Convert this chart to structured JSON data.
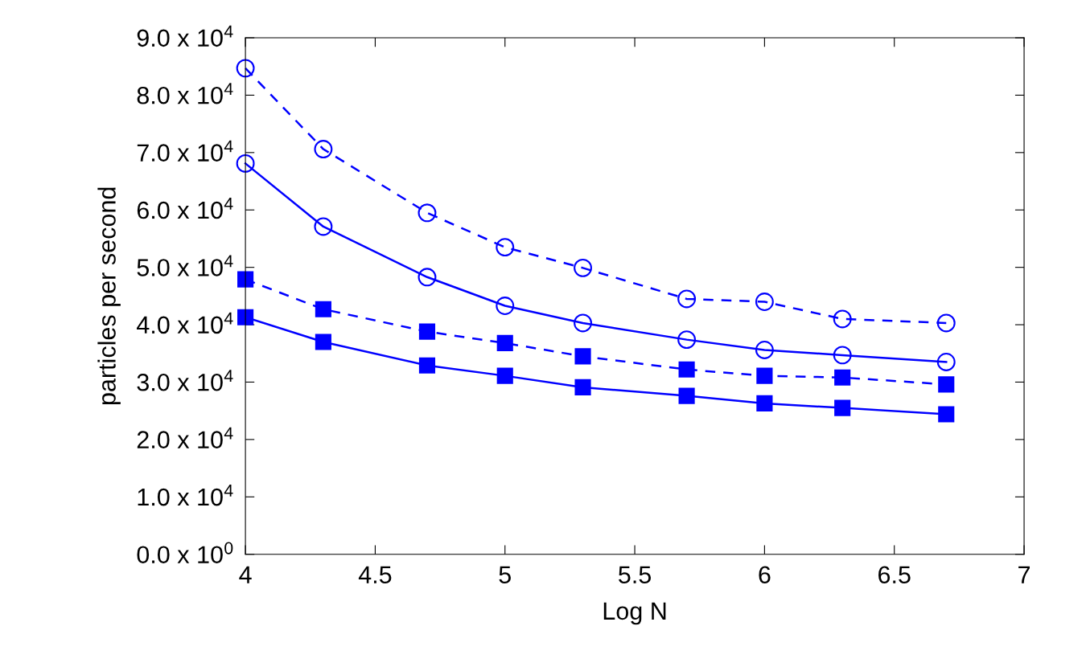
{
  "chart_data": {
    "type": "line",
    "xlabel": "Log N",
    "ylabel": "particles per second",
    "x": [
      4,
      4.3,
      4.7,
      5,
      5.3,
      5.7,
      6,
      6.3,
      6.7
    ],
    "series": [
      {
        "color": "#0000ff",
        "marker": "circle",
        "line_style": "dashed",
        "values": [
          84700,
          70600,
          59500,
          53500,
          49900,
          44500,
          44000,
          41000,
          40300
        ]
      },
      {
        "color": "#0000ff",
        "marker": "circle",
        "line_style": "solid",
        "values": [
          68100,
          57100,
          48300,
          43300,
          40300,
          37400,
          35600,
          34700,
          33500
        ]
      },
      {
        "color": "#0000ff",
        "marker": "square",
        "line_style": "dashed",
        "values": [
          47900,
          42700,
          38800,
          36800,
          34500,
          32200,
          31100,
          30800,
          29600
        ]
      },
      {
        "color": "#0000ff",
        "marker": "square",
        "line_style": "solid",
        "values": [
          41300,
          37000,
          32900,
          31100,
          29100,
          27600,
          26300,
          25500,
          24400
        ]
      }
    ],
    "xlim": [
      4,
      7
    ],
    "xticks": [
      4,
      4.5,
      5,
      5.5,
      6,
      6.5,
      7
    ],
    "ylim": [
      0,
      90000
    ],
    "yticks": [
      {
        "value": 0,
        "label": "0.0 x 10$^{0}$"
      },
      {
        "value": 10000,
        "label": "1.0 x 10$^{4}$"
      },
      {
        "value": 20000,
        "label": "2.0 x 10$^{4}$"
      },
      {
        "value": 30000,
        "label": "3.0 x 10$^{4}$"
      },
      {
        "value": 40000,
        "label": "4.0 x 10$^{4}$"
      },
      {
        "value": 50000,
        "label": "5.0 x 10$^{4}$"
      },
      {
        "value": 60000,
        "label": "6.0 x 10$^{4}$"
      },
      {
        "value": 70000,
        "label": "7.0 x 10$^{4}$"
      },
      {
        "value": 80000,
        "label": "8.0 x 10$^{4}$"
      },
      {
        "value": 90000,
        "label": "9.0 x 10$^{4}$"
      }
    ],
    "grid": false
  }
}
